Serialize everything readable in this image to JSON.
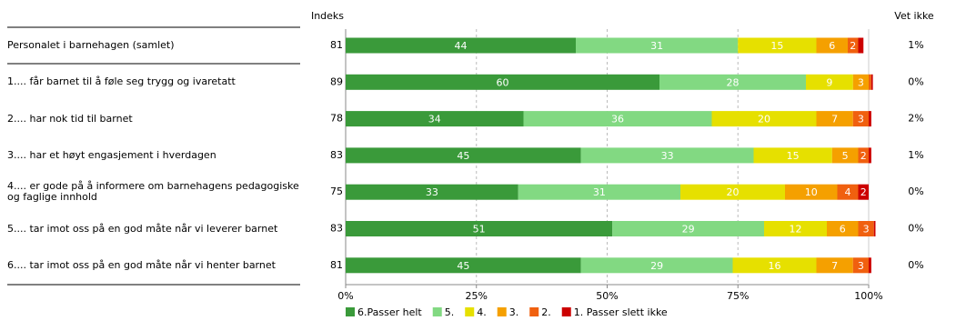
{
  "chart_data": {
    "type": "stacked-bar-horizontal",
    "index_header": "Indeks",
    "unknown_header": "Vet ikke",
    "categories": [
      "Personalet i barnehagen  (samlet)",
      "1.... får barnet til å føle seg trygg og ivaretatt",
      "2.... har nok tid til barnet",
      "3.... har et høyt engasjement i hverdagen",
      "4.... er gode på å informere om barnehagens pedagogiske og faglige innhold",
      "5.... tar imot oss på en god måte når vi leverer barnet",
      "6.... tar imot oss på en god måte når vi henter barnet"
    ],
    "index": [
      81,
      89,
      78,
      83,
      75,
      83,
      81
    ],
    "unknown": {
      "values": [
        1,
        0,
        2,
        1,
        0,
        0,
        0
      ],
      "value_labels": [
        "1%",
        "0%",
        "2%",
        "1%",
        "0%",
        "0%",
        "0%"
      ]
    },
    "series": [
      {
        "name": "6.Passer helt",
        "color": "#3a9a3a",
        "values": [
          44,
          60,
          34,
          45,
          33,
          51,
          45
        ]
      },
      {
        "name": "5.",
        "color": "#82d982",
        "values": [
          31,
          28,
          36,
          33,
          31,
          29,
          29
        ]
      },
      {
        "name": "4.",
        "color": "#e6e000",
        "values": [
          15,
          9,
          20,
          15,
          20,
          12,
          16
        ]
      },
      {
        "name": "3.",
        "color": "#f5a000",
        "values": [
          6,
          3,
          7,
          5,
          10,
          6,
          7
        ]
      },
      {
        "name": "2.",
        "color": "#f0600f",
        "values": [
          2,
          0.5,
          3,
          2,
          4,
          3,
          3
        ]
      },
      {
        "name": "1. Passer slett ikke",
        "color": "#cc0000",
        "values": [
          1,
          0.3,
          0.5,
          0.5,
          2,
          0.3,
          0.5
        ]
      }
    ],
    "xlim": [
      0,
      100
    ],
    "xticks": [
      {
        "value": 0,
        "label": "0%"
      },
      {
        "value": 25,
        "label": "25%"
      },
      {
        "value": 50,
        "label": "50%"
      },
      {
        "value": 75,
        "label": "75%"
      },
      {
        "value": 100,
        "label": "100%"
      }
    ],
    "grid": true
  }
}
